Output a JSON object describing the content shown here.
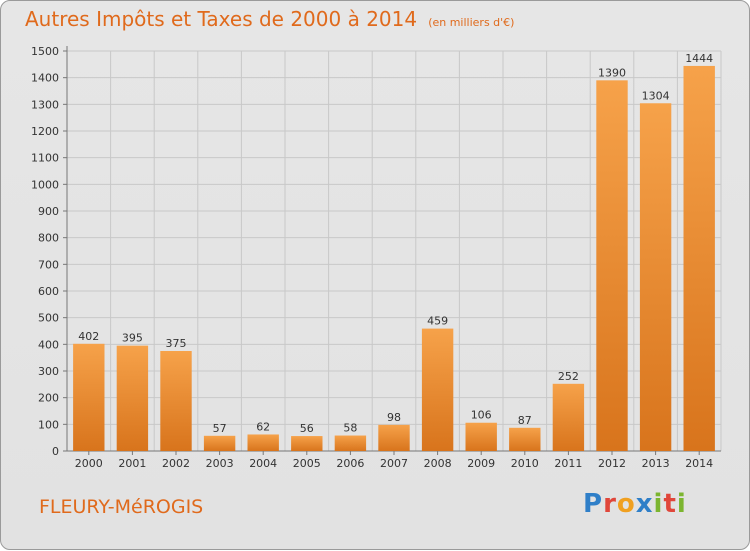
{
  "header": {
    "title": "Autres Impôts et Taxes de 2000 à 2014",
    "subtitle": "(en milliers d'€)"
  },
  "footer": {
    "commune": "FLEURY-MéROGIS",
    "logo_letters": [
      "P",
      "r",
      "o",
      "x",
      "i",
      "t",
      "i"
    ],
    "logo_colors": [
      "#2f7fc8",
      "#e0463a",
      "#f0a020",
      "#2f7fc8",
      "#7cb530",
      "#e0463a",
      "#7cb530"
    ]
  },
  "colors": {
    "bar_light": "#f6a24a",
    "bar_dark": "#d8741c",
    "grid": "#c8c8c8",
    "text": "#333333",
    "accent": "#e06a1c"
  },
  "chart_data": {
    "type": "bar",
    "title": "Autres Impôts et Taxes de 2000 à 2014",
    "subtitle": "(en milliers d'€)",
    "categories": [
      "2000",
      "2001",
      "2002",
      "2003",
      "2004",
      "2005",
      "2006",
      "2007",
      "2008",
      "2009",
      "2010",
      "2011",
      "2012",
      "2013",
      "2014"
    ],
    "values": [
      402,
      395,
      375,
      57,
      62,
      56,
      58,
      98,
      459,
      106,
      87,
      252,
      1390,
      1304,
      1444
    ],
    "ylim": [
      0,
      1500
    ],
    "yticks": [
      0,
      100,
      200,
      300,
      400,
      500,
      600,
      700,
      800,
      900,
      1000,
      1100,
      1200,
      1300,
      1400,
      1500
    ],
    "grid": true
  }
}
